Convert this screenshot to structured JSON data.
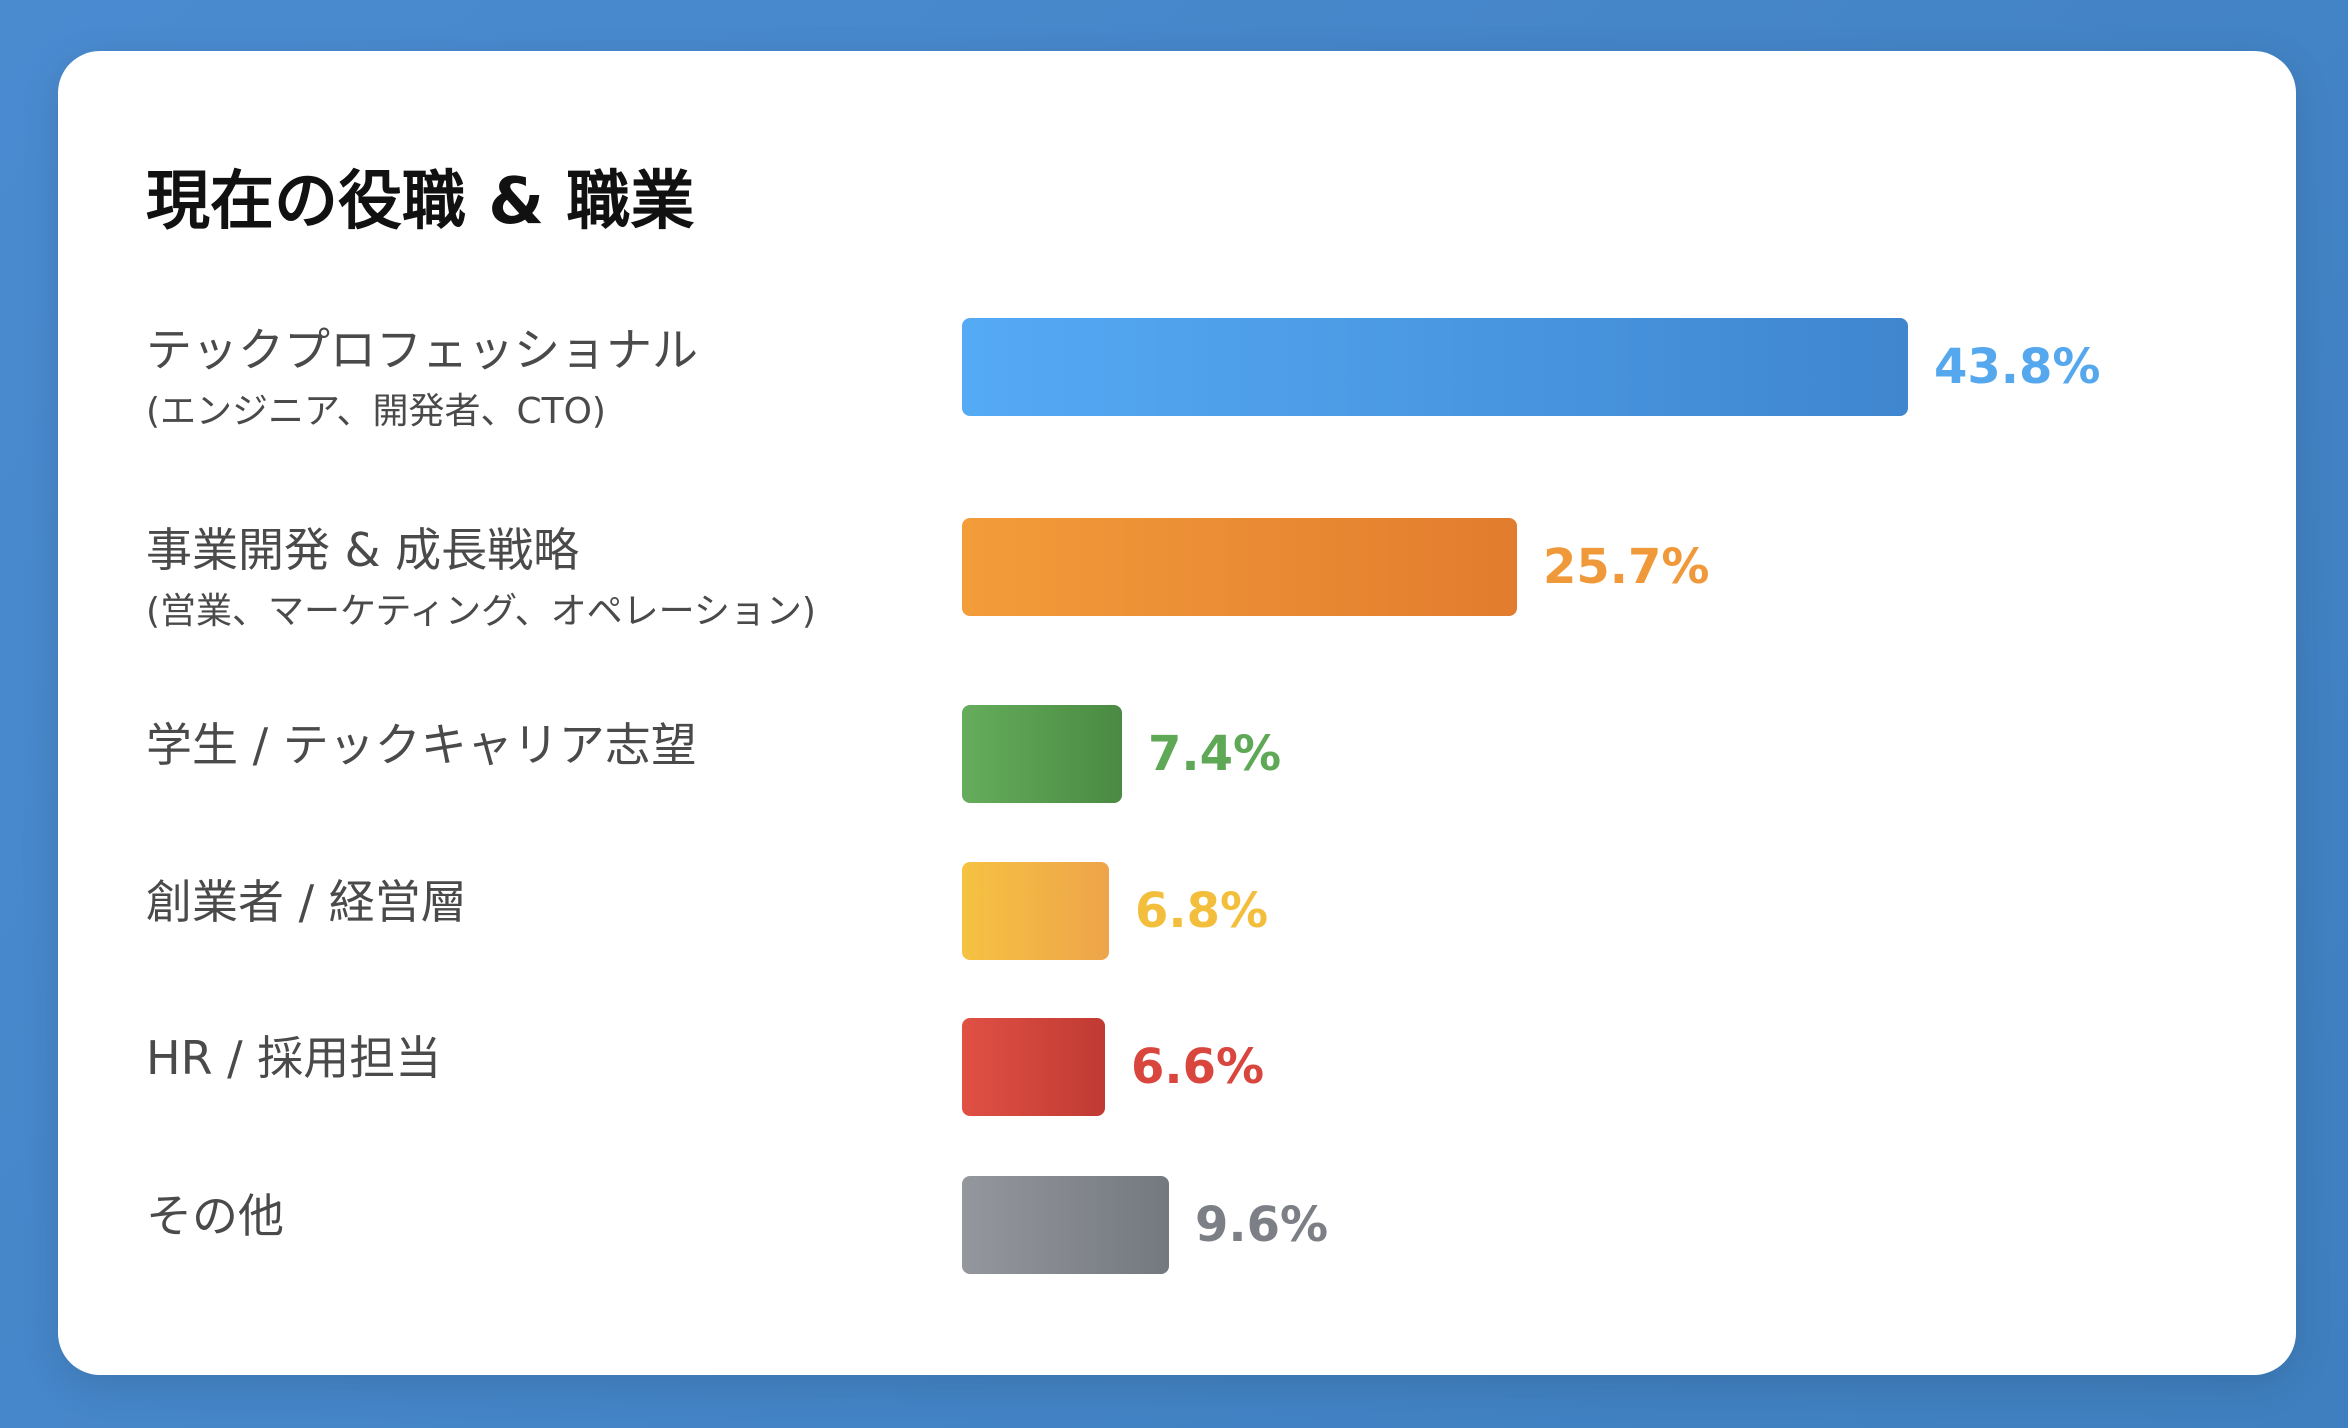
{
  "chart_data": {
    "type": "bar",
    "orientation": "horizontal",
    "title": "現在の役職 & 職業",
    "categories": [
      {
        "label": "テックプロフェッショナル",
        "sublabel": "(エンジニア、開発者、CTO)"
      },
      {
        "label": "事業開発 & 成長戦略",
        "sublabel": "(営業、マーケティング、オペレーション)"
      },
      {
        "label": "学生 / テックキャリア志望",
        "sublabel": ""
      },
      {
        "label": "創業者 / 経営層",
        "sublabel": ""
      },
      {
        "label": "HR / 採用担当",
        "sublabel": ""
      },
      {
        "label": "その他",
        "sublabel": ""
      }
    ],
    "values": [
      43.8,
      25.7,
      7.4,
      6.8,
      6.6,
      9.6
    ],
    "value_labels": [
      "43.8%",
      "25.7%",
      "7.4%",
      "6.8%",
      "6.6%",
      "9.6%"
    ],
    "colors": [
      [
        "#55aaf5",
        "#3f86cf"
      ],
      [
        "#f39c3a",
        "#e27c2e"
      ],
      [
        "#65ad5c",
        "#4a8a42"
      ],
      [
        "#f5c242",
        "#eea44a"
      ],
      [
        "#e05044",
        "#c03a33"
      ],
      [
        "#94979d",
        "#74787f"
      ]
    ],
    "value_colors": [
      "#55a8ee",
      "#f0993a",
      "#5fa856",
      "#f3be3b",
      "#d9463d",
      "#7c7f85"
    ],
    "unit": "%"
  }
}
